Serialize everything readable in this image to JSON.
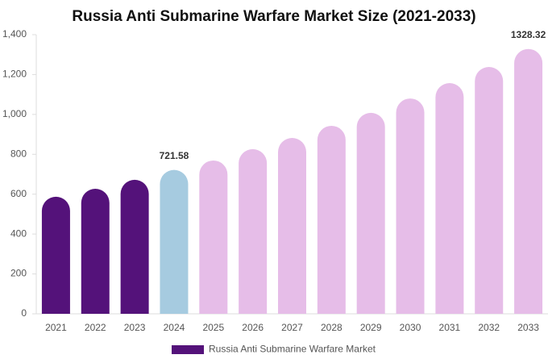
{
  "chart_data": {
    "type": "bar",
    "title": "Russia Anti Submarine Warfare Market Size (2021-2033)",
    "categories": [
      "2021",
      "2022",
      "2023",
      "2024",
      "2025",
      "2026",
      "2027",
      "2028",
      "2029",
      "2030",
      "2031",
      "2032",
      "2033"
    ],
    "series": [
      {
        "name": "Russia Anti Submarine Warfare Market",
        "color": "#54127a",
        "values": [
          587,
          627,
          672,
          721.58,
          769,
          826,
          882,
          943,
          1008,
          1080,
          1157,
          1238,
          1328.32
        ],
        "value_labels": [
          null,
          null,
          null,
          "721.58",
          null,
          null,
          null,
          null,
          null,
          null,
          null,
          null,
          "1328.32"
        ],
        "colors": [
          "#54127a",
          "#54127a",
          "#54127a",
          "#a6cbe0",
          "#e6bde8",
          "#e6bde8",
          "#e6bde8",
          "#e6bde8",
          "#e6bde8",
          "#e6bde8",
          "#e6bde8",
          "#e6bde8",
          "#e6bde8"
        ]
      }
    ],
    "ylim": [
      0,
      1400
    ],
    "yticks": [
      0,
      200,
      400,
      600,
      800,
      {
        "value": 1000,
        "label": "1,000"
      },
      {
        "value": 1200,
        "label": "1,200"
      },
      {
        "value": 1400,
        "label": "1,400"
      }
    ],
    "grid": false
  }
}
